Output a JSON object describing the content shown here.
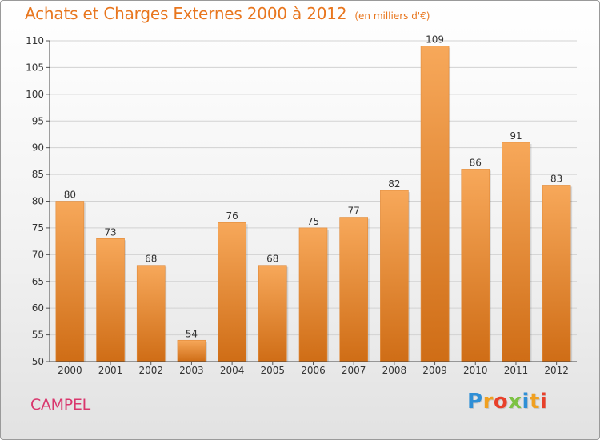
{
  "chart_data": {
    "type": "bar",
    "title": "Achats et Charges Externes 2000 à 2012",
    "unit": "(en milliers d'€)",
    "categories": [
      "2000",
      "2001",
      "2002",
      "2003",
      "2004",
      "2005",
      "2006",
      "2007",
      "2008",
      "2009",
      "2010",
      "2011",
      "2012"
    ],
    "values": [
      80,
      73,
      68,
      54,
      76,
      68,
      75,
      77,
      82,
      109,
      86,
      91,
      83
    ],
    "xlabel": "",
    "ylabel": "",
    "ylim": [
      50,
      110
    ],
    "yticks": [
      50,
      55,
      60,
      65,
      70,
      75,
      80,
      85,
      90,
      95,
      100,
      105,
      110
    ],
    "grid": true,
    "data_labels": true
  },
  "place_name": "CAMPEL",
  "logo": {
    "letters": [
      "P",
      "r",
      "o",
      "x",
      "i",
      "t",
      "i"
    ],
    "colors": [
      "#2f8fd6",
      "#f0a020",
      "#e8402a",
      "#7cc243",
      "#2f8fd6",
      "#f0a020",
      "#e8402a"
    ]
  },
  "colors": {
    "title": "#e8761e",
    "place": "#d9376d",
    "bar_light": "#f7a85a",
    "bar_dark": "#cf6d16"
  }
}
